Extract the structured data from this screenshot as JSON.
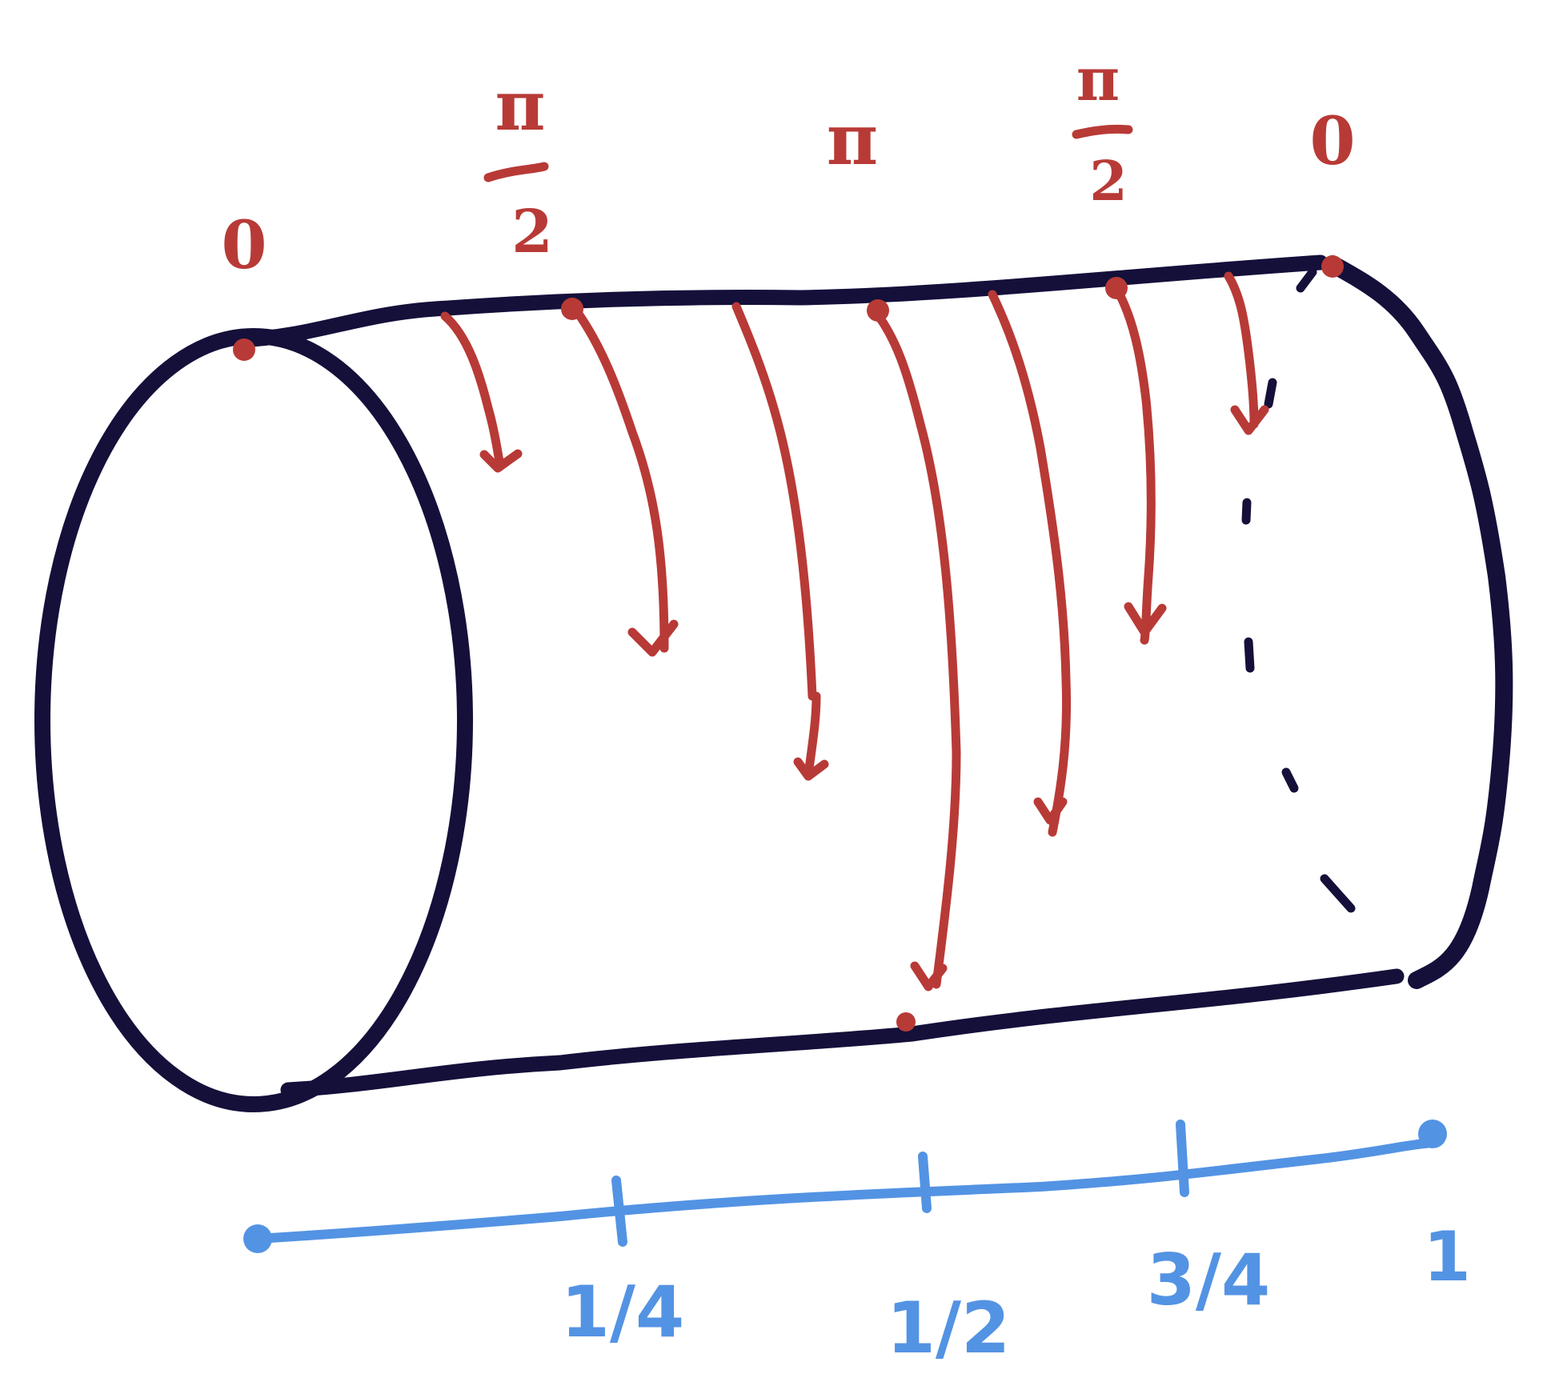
{
  "colors": {
    "outline": "#14103a",
    "angle": "#b83a36",
    "parameter": "#5393e3",
    "background": "#ffffff"
  },
  "angle_labels": {
    "left_zero": "0",
    "pi_over_two_left": {
      "numerator": "π",
      "denominator": "2"
    },
    "pi": "π",
    "pi_over_two_right": {
      "numerator": "π",
      "denominator": "2"
    },
    "right_zero": "0"
  },
  "parameter_axis": {
    "ticks": [
      "1/4",
      "1/2",
      "3/4"
    ],
    "end_label": "1"
  }
}
